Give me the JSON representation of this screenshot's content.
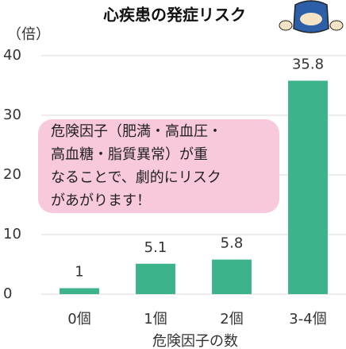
{
  "chart_data": {
    "type": "bar",
    "title": "心疾患の発症リスク",
    "y_label": "（倍）",
    "x_label": "危険因子の数",
    "categories": [
      "0個",
      "1個",
      "2個",
      "3-4個"
    ],
    "values": [
      1,
      5.1,
      5.8,
      35.8
    ],
    "color": "#3db38b",
    "ylim": [
      0,
      40
    ],
    "yticks": [
      0,
      10,
      20,
      30,
      40
    ],
    "grid": true,
    "annotation": [
      "危険因子（肥満・高血圧・",
      "高血糖・脂質異常）が重",
      "なることで、劇的にリスク",
      "があがります！"
    ]
  }
}
